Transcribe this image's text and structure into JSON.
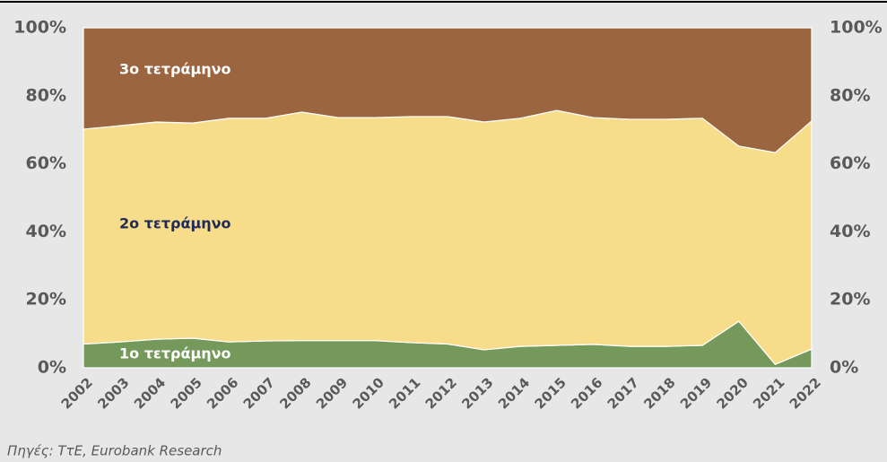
{
  "chart_data": {
    "type": "stacked_area",
    "categories": [
      "2002",
      "2003",
      "2004",
      "2005",
      "2006",
      "2007",
      "2008",
      "2009",
      "2010",
      "2011",
      "2012",
      "2013",
      "2014",
      "2015",
      "2016",
      "2017",
      "2018",
      "2019",
      "2020",
      "2021",
      "2022"
    ],
    "series": [
      {
        "name": "1ο τετράμηνο",
        "color": "#74995a",
        "label_color": "#ffffff",
        "values": [
          7,
          7.6,
          8.4,
          8.7,
          7.6,
          7.9,
          8,
          8,
          8,
          7.4,
          7,
          5.3,
          6.3,
          6.6,
          6.9,
          6.3,
          6.3,
          6.6,
          13.7,
          1,
          5.5
        ]
      },
      {
        "name": "2ο τετράμηνο",
        "color": "#f7dc8a",
        "label_color": "#1f2a5a",
        "values": [
          63.2,
          63.6,
          63.9,
          63.3,
          65.8,
          65.5,
          67.2,
          65.6,
          65.6,
          66.5,
          66.9,
          67,
          67.1,
          69.1,
          66.7,
          66.8,
          66.8,
          66.8,
          51.5,
          62.3,
          67.1
        ]
      },
      {
        "name": "3ο τετράμηνο",
        "color": "#9b6540",
        "label_color": "#ffffff",
        "values": [
          29.8,
          28.8,
          27.7,
          28,
          26.6,
          26.6,
          24.8,
          26.4,
          26.4,
          26.1,
          26.1,
          27.7,
          26.6,
          24.3,
          26.4,
          26.9,
          26.9,
          26.6,
          34.8,
          36.7,
          27.4
        ]
      }
    ],
    "ylim": [
      0,
      100
    ],
    "yticks": [
      {
        "value": 0,
        "label": "0%"
      },
      {
        "value": 20,
        "label": "20%"
      },
      {
        "value": 40,
        "label": "40%"
      },
      {
        "value": 60,
        "label": "60%"
      },
      {
        "value": 80,
        "label": "80%"
      },
      {
        "value": 100,
        "label": "100%"
      }
    ],
    "y2lim": [
      0,
      100
    ],
    "y2ticks": [
      {
        "value": 0,
        "label": "0%"
      },
      {
        "value": 20,
        "label": "20%"
      },
      {
        "value": 40,
        "label": "40%"
      },
      {
        "value": 60,
        "label": "60%"
      },
      {
        "value": 80,
        "label": "80%"
      },
      {
        "value": 100,
        "label": "100%"
      }
    ],
    "source": "Πηγές: ΤτΕ, Eurobank Research"
  }
}
